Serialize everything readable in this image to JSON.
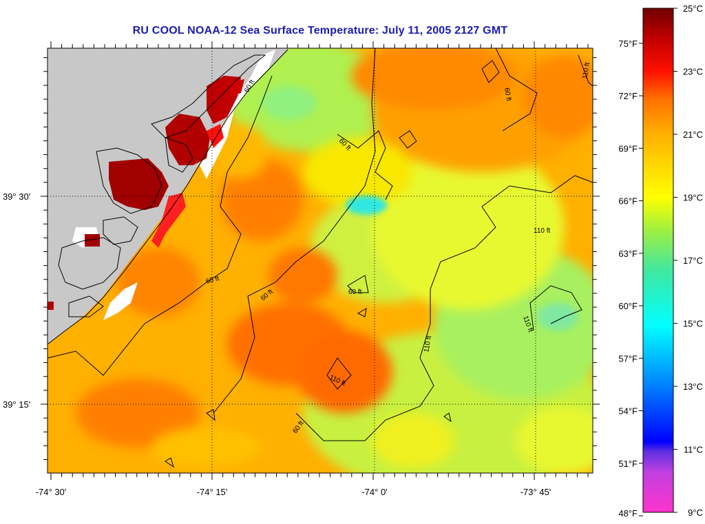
{
  "title": "RU COOL  NOAA-12  Sea Surface Temperature:  July 11, 2005 2127 GMT",
  "map": {
    "lon_labels": [
      "-74° 30'",
      "-74° 15'",
      "-74° 0'",
      "-73° 45'"
    ],
    "lat_labels": [
      "39° 30'",
      "39° 15'"
    ],
    "contour_labels": [
      "60 ft",
      "60 ft",
      "60 ft",
      "60 ft",
      "60 ft",
      "60 ft",
      "110 ft",
      "110 ft",
      "110 ft",
      "110 ft",
      "110 ft"
    ]
  },
  "colorbar": {
    "celsius_labels": [
      "25°C",
      "23°C",
      "21°C",
      "19°C",
      "17°C",
      "15°C",
      "13°C",
      "11°C",
      "9°C"
    ],
    "fahrenheit_labels": [
      "75°F",
      "72°F",
      "69°F",
      "66°F",
      "63°F",
      "60°F",
      "57°F",
      "54°F",
      "51°F",
      "48°F"
    ],
    "colors": [
      "#ff33cc",
      "#8040d0",
      "#0000ff",
      "#0090ff",
      "#00ffff",
      "#40e0a0",
      "#a0f040",
      "#ffff00",
      "#ffb000",
      "#ff6000",
      "#ff0000",
      "#b00000",
      "#700000"
    ]
  },
  "colors": {
    "title": "#1a1ab5",
    "land": "#c8c8c8"
  }
}
